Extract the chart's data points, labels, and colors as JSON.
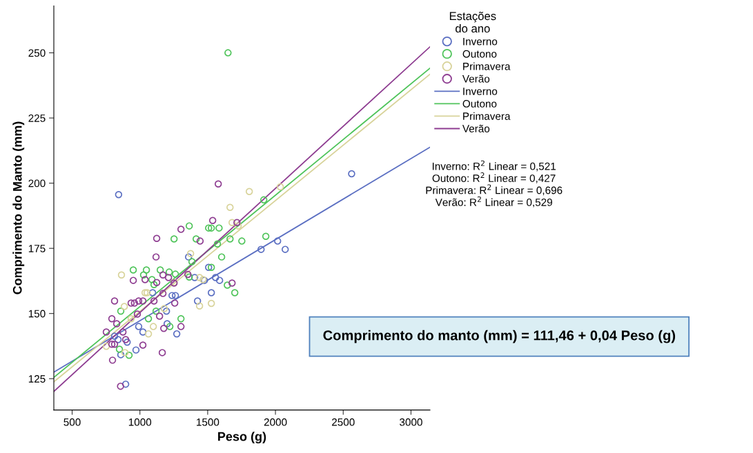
{
  "chart_data": {
    "type": "scatter",
    "xlabel": "Peso (g)",
    "ylabel": "Comprimento do Manto (mm)",
    "legend_title": "Estações\ndo ano",
    "legend": "top right",
    "grid": false,
    "xlim": [
      365,
      3140
    ],
    "xticks": [
      500,
      1000,
      1500,
      2000,
      2500,
      3000
    ],
    "ylim": [
      113,
      268
    ],
    "yticks": [
      125,
      150,
      175,
      200,
      225,
      250
    ],
    "series": [
      {
        "name": "Inverno",
        "marker": "circle",
        "color": "#5b6fc2",
        "x": [
          843,
          2562,
          1359,
          1507,
          1404,
          1476,
          1558,
          1588,
          1527,
          1425,
          1894,
          2016,
          2072,
          1237,
          1262,
          1196,
          1201,
          1272,
          1022,
          991,
          971,
          859,
          895,
          839,
          813,
          906,
          1094
        ],
        "values": [
          195.6,
          203.6,
          171.7,
          167.7,
          163.8,
          162.7,
          163.8,
          162.7,
          158,
          154.8,
          174.6,
          177.8,
          174.6,
          156.9,
          156.9,
          150.9,
          146.1,
          142.2,
          142.9,
          145,
          136,
          134.2,
          122.9,
          140,
          141.3,
          139,
          158
        ]
      },
      {
        "name": "Outono",
        "marker": "circle",
        "color": "#4fc45a",
        "x": [
          1650,
          1364,
          1507,
          1527,
          1584,
          1415,
          1665,
          1752,
          1572,
          1929,
          1914,
          1603,
          1384,
          1527,
          1364,
          1645,
          1700,
          1252,
          951,
          1048,
          1027,
          1150,
          1216,
          1262,
          1089,
          1104,
          859,
          1063,
          1303,
          1221,
          849,
          920,
          1119
        ],
        "values": [
          250,
          183.6,
          182.8,
          182.8,
          182.8,
          178.6,
          178.6,
          177.8,
          176.7,
          179.6,
          193.6,
          171.7,
          169.9,
          167.7,
          164,
          160.9,
          158,
          178.6,
          166.7,
          166.7,
          164.8,
          166.7,
          165.9,
          165.1,
          163,
          161.1,
          150.9,
          148,
          148,
          145,
          136.3,
          134,
          150.9
        ]
      },
      {
        "name": "Primavera",
        "marker": "circle",
        "color": "#d8d39a",
        "x": [
          1807,
          2036,
          1665,
          1680,
          1725,
          1374,
          1440,
          1466,
          1440,
          1527,
          864,
          1038,
          1053,
          885,
          935,
          1099,
          1063,
          752,
          890,
          1252,
          1180
        ],
        "values": [
          196.8,
          198.6,
          190.7,
          184.9,
          183.6,
          173,
          163.8,
          163,
          152.9,
          153.9,
          164.8,
          158,
          158,
          152.7,
          148,
          145,
          142.2,
          137.4,
          135,
          161.9,
          151.9
        ]
      },
      {
        "name": "Verão",
        "marker": "circle",
        "color": "#8e3d91",
        "x": [
          1578,
          1537,
          1716,
          1444,
          1354,
          1680,
          1124,
          1119,
          1303,
          951,
          1038,
          1170,
          1211,
          1124,
          1252,
          813,
          935,
          960,
          991,
          1022,
          1104,
          1170,
          1257,
          981,
          793,
          752,
          829,
          1145,
          1176,
          1303,
          875,
          895,
          793,
          813,
          1022,
          798,
          1165,
          857
        ],
        "values": [
          199.7,
          185.7,
          184.9,
          177.8,
          165,
          161.7,
          178.8,
          171.7,
          182.3,
          162.7,
          163,
          164.8,
          163.8,
          161.9,
          161.7,
          154.8,
          154,
          154,
          154.8,
          154.8,
          154.8,
          157.7,
          154,
          149.8,
          148,
          142.9,
          146.1,
          149,
          144.3,
          145,
          142.9,
          140,
          138.2,
          138.2,
          137.9,
          132.1,
          135,
          122.1
        ]
      },
      {
        "name": "Inverno",
        "type": "line",
        "marker": "none",
        "color": "#5b6fc2",
        "x": [
          365,
          3140
        ],
        "values": [
          127.5,
          213.8
        ]
      },
      {
        "name": "Outono",
        "type": "line",
        "marker": "none",
        "color": "#4fc45a",
        "x": [
          365,
          3140
        ],
        "values": [
          125.5,
          244.1
        ]
      },
      {
        "name": "Primavera",
        "type": "line",
        "marker": "none",
        "color": "#d8d39a",
        "x": [
          365,
          3140
        ],
        "values": [
          123.8,
          241.8
        ]
      },
      {
        "name": "Verão",
        "type": "line",
        "marker": "none",
        "color": "#8e3d91",
        "x": [
          365,
          3140
        ],
        "values": [
          120.1,
          252.3
        ]
      }
    ],
    "annotations": [
      "Inverno: R$^{2}$ Linear = 0,521",
      "Outono: R$^{2}$ Linear = 0,427",
      "Primavera: R$^{2}$ Linear = 0,696",
      "Verão: R$^{2}$ Linear = 0,529",
      "Comprimento do manto (mm) = 111,46 + 0,04 Peso (g)"
    ]
  }
}
